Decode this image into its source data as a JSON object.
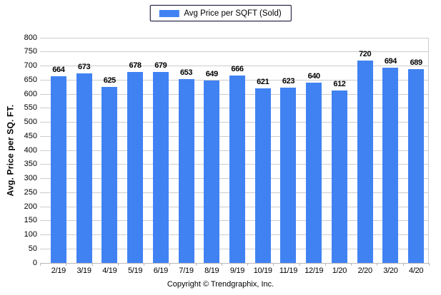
{
  "legend": {
    "label": "Avg Price per SQFT (Sold)",
    "swatch_icon": "blue-bar-swatch"
  },
  "footer": {
    "copyright": "Copyright © Trendgraphix, Inc."
  },
  "colors": {
    "bar": "#4182F3",
    "gridline": "#cccccc",
    "axis": "#b8b8b8",
    "legend_border": "#1c1c3c",
    "text": "#000000",
    "background": "#ffffff"
  },
  "chart_data": {
    "type": "bar",
    "title": "",
    "xlabel": "",
    "ylabel": "Avg. Price per SQ. FT.",
    "categories": [
      "2/19",
      "3/19",
      "4/19",
      "5/19",
      "6/19",
      "7/19",
      "8/19",
      "9/19",
      "10/19",
      "11/19",
      "12/19",
      "1/20",
      "2/20",
      "3/20",
      "4/20"
    ],
    "values": [
      664,
      673,
      625,
      678,
      679,
      653,
      649,
      666,
      621,
      623,
      640,
      612,
      720,
      694,
      689
    ],
    "series_name": "Avg Price per SQFT (Sold)",
    "ylim": [
      0,
      800
    ],
    "ytick_step": 50,
    "grid": true,
    "data_labels": true,
    "legend_position": "top-center"
  }
}
